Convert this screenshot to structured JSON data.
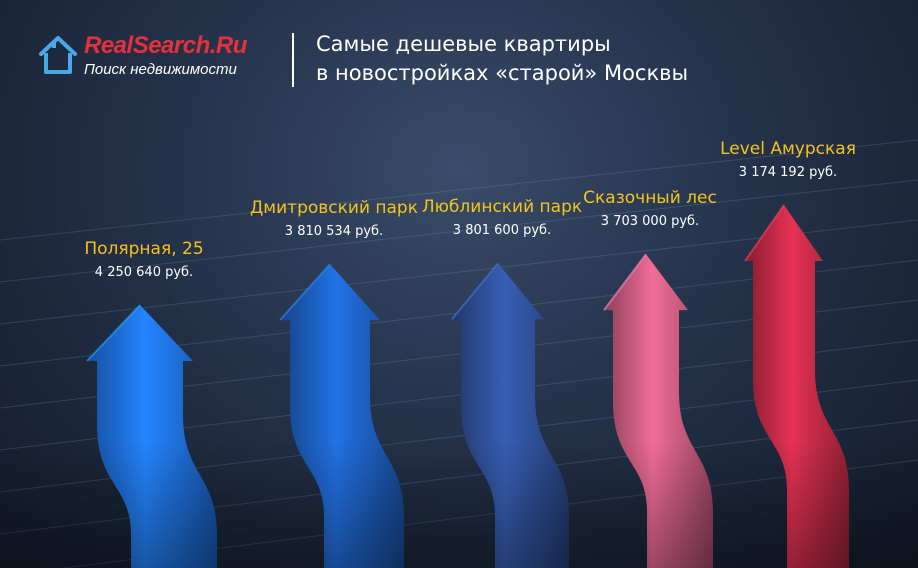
{
  "header": {
    "logo_brand": "RealSearch.Ru",
    "logo_tagline": "Поиск недвижимости",
    "title_line1": "Самые дешевые квартиры",
    "title_line2": "в новостройках «старой» Москвы"
  },
  "chart_data": {
    "type": "bar",
    "categories": [
      "Полярная, 25",
      "Дмитровский парк",
      "Люблинский парк",
      "Сказочный лес",
      "Level Амурская"
    ],
    "values": [
      4250640,
      3810534,
      3801600,
      3703000,
      3174192
    ],
    "value_labels": [
      "4 250 640 руб.",
      "3 810 534 руб.",
      "3 801 600 руб.",
      "3 703 000 руб.",
      "3 174 192 руб."
    ],
    "colors": [
      "#1e6fe0",
      "#1d5fbf",
      "#2f4f97",
      "#c95b7f",
      "#c02a45"
    ],
    "label_color": "#f4c41a",
    "grid": true
  }
}
